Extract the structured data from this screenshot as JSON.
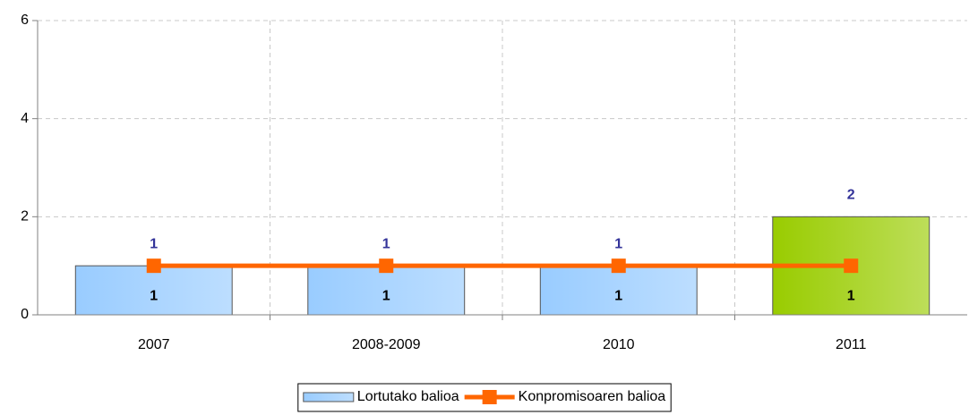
{
  "chart_data": {
    "type": "bar",
    "categories": [
      "2007",
      "2008-2009",
      "2010",
      "2011"
    ],
    "series": [
      {
        "name": "Lortutako balioa",
        "type": "bar",
        "colors": [
          "#99ccff",
          "#99ccff",
          "#99ccff",
          "#99cc00"
        ],
        "color": "#99ccff",
        "label_color": "#333399",
        "values": [
          1,
          1,
          1,
          2
        ]
      },
      {
        "name": "Konpromisoaren balioa",
        "type": "line",
        "color": "#ff6600",
        "label_color": "#000000",
        "values": [
          1,
          1,
          1,
          1
        ]
      }
    ],
    "ylim": [
      0,
      6
    ],
    "yticks": [
      0,
      2,
      4,
      6
    ],
    "grid": true,
    "legend": "bottom"
  }
}
